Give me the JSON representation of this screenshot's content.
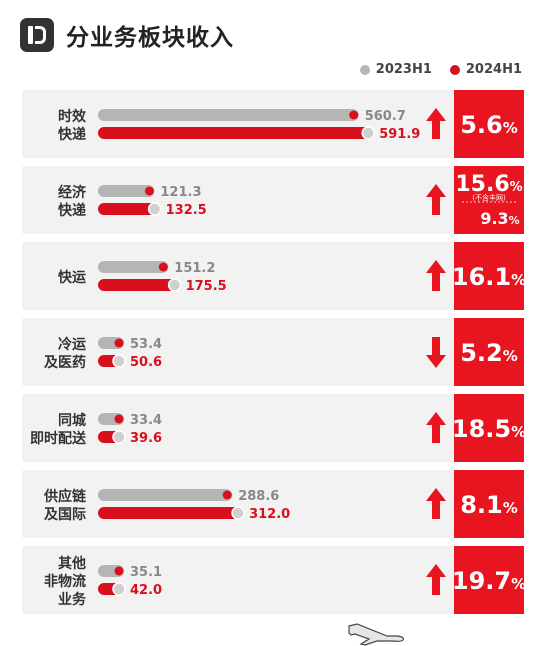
{
  "header": {
    "title": "分业务板块收入"
  },
  "legend": [
    {
      "name": "2023H1",
      "color": "#b5b5b5"
    },
    {
      "name": "2024H1",
      "color": "#d8101e"
    }
  ],
  "colors": {
    "gray": "#b5b5b5",
    "red": "#d8101e",
    "row_bg": "#f2f2f2",
    "panel": "#e8141f"
  },
  "chart_data": {
    "type": "bar",
    "title": "分业务板块收入",
    "categories": [
      [
        "时效",
        "快递"
      ],
      [
        "经济",
        "快递"
      ],
      [
        "快运"
      ],
      [
        "冷运",
        "及医药"
      ],
      [
        "同城",
        "即时配送"
      ],
      [
        "供应链",
        "及国际"
      ],
      [
        "其他",
        "非物流",
        "业务"
      ]
    ],
    "series": [
      {
        "name": "2023H1",
        "values": [
          560.7,
          121.3,
          151.2,
          53.4,
          33.4,
          288.6,
          35.1
        ],
        "labels": [
          "560.7",
          "121.3",
          "151.2",
          "53.4",
          "33.4",
          "288.6",
          "35.1"
        ]
      },
      {
        "name": "2024H1",
        "values": [
          591.9,
          132.5,
          175.5,
          50.6,
          39.6,
          312.0,
          42.0
        ],
        "labels": [
          "591.9",
          "132.5",
          "175.5",
          "50.6",
          "39.6",
          "312.0",
          "42.0"
        ]
      }
    ],
    "growth": [
      {
        "direction": "up",
        "value": "5.6",
        "unit": "%"
      },
      {
        "direction": "up",
        "value": "15.6",
        "unit": "%",
        "note": "(不含丰网)",
        "sub_value": "9.3",
        "sub_unit": "%"
      },
      {
        "direction": "up",
        "value": "16.1",
        "unit": "%"
      },
      {
        "direction": "down",
        "value": "5.2",
        "unit": "%"
      },
      {
        "direction": "up",
        "value": "18.5",
        "unit": "%"
      },
      {
        "direction": "up",
        "value": "8.1",
        "unit": "%"
      },
      {
        "direction": "up",
        "value": "19.7",
        "unit": "%"
      }
    ],
    "legend_position": "top-right",
    "grid": false
  }
}
